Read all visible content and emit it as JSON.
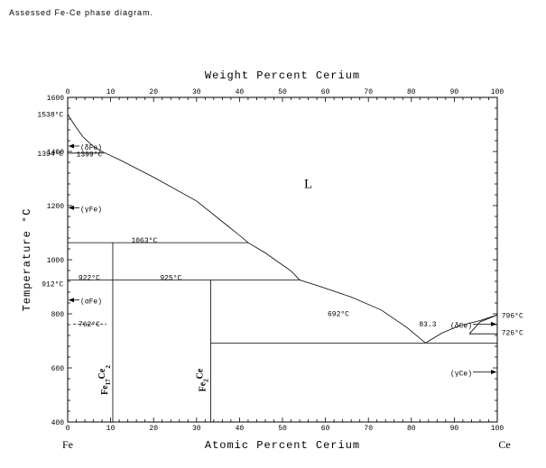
{
  "caption": "Assessed Fe-Ce phase diagram.",
  "chart_data": {
    "type": "phase-diagram",
    "top_axis": {
      "title": "Weight Percent Cerium",
      "ticks": [
        0,
        10,
        20,
        30,
        40,
        50,
        60,
        70,
        80,
        90,
        100
      ]
    },
    "bottom_axis": {
      "title": "Atomic Percent Cerium",
      "range": [
        0,
        100
      ],
      "ticks": [
        0,
        10,
        20,
        30,
        40,
        50,
        60,
        70,
        80,
        90,
        100
      ]
    },
    "y_axis": {
      "title": "Temperature °C",
      "range": [
        400,
        1600
      ],
      "ticks": [
        400,
        600,
        800,
        1000,
        1200,
        1400,
        1600
      ]
    },
    "end_labels": {
      "left": "Fe",
      "right": "Ce"
    },
    "phase_labels": [
      {
        "text": "L",
        "x": 56,
        "y": 1265
      }
    ],
    "compounds": [
      {
        "name": "Fe17Ce2",
        "base": "Fe",
        "sub1": "17",
        "mid": "Ce",
        "sub2": "2",
        "x": 10.5
      },
      {
        "name": "Fe2Ce",
        "base": "Fe",
        "sub1": "2",
        "mid": "Ce",
        "sub2": "",
        "x": 33.3
      }
    ],
    "temperature_labels": [
      {
        "text": "1538°C",
        "x": -1,
        "y": 1538,
        "anchor": "end"
      },
      {
        "text": "1394°C",
        "x": -1,
        "y": 1393,
        "anchor": "end"
      },
      {
        "text": "1399°C",
        "x": 2,
        "y": 1392,
        "anchor": "start"
      },
      {
        "text": "1063°C",
        "x": 14.8,
        "y": 1073,
        "anchor": "start"
      },
      {
        "text": "922°C",
        "x": 2.5,
        "y": 935,
        "anchor": "start"
      },
      {
        "text": "912°C",
        "x": -1,
        "y": 912,
        "anchor": "end"
      },
      {
        "text": "925°C",
        "x": 21.5,
        "y": 935,
        "anchor": "start"
      },
      {
        "text": "762°C",
        "x": 2.5,
        "y": 764,
        "anchor": "start"
      },
      {
        "text": "692°C",
        "x": 60.5,
        "y": 802,
        "anchor": "start"
      },
      {
        "text": "83.3",
        "x": 81.8,
        "y": 763,
        "anchor": "start"
      },
      {
        "text": "796°C",
        "x": 101,
        "y": 795,
        "anchor": "start"
      },
      {
        "text": "726°C",
        "x": 101,
        "y": 732,
        "anchor": "start"
      }
    ],
    "phase_markers": [
      {
        "text": "(δFe)",
        "side": "left",
        "y": 1420
      },
      {
        "text": "(γFe)",
        "side": "left",
        "y": 1192
      },
      {
        "text": "(αFe)",
        "side": "left",
        "y": 851
      },
      {
        "text": "(δCe)",
        "side": "right",
        "y": 762
      },
      {
        "text": "(γCe)",
        "side": "right",
        "y": 585
      }
    ],
    "liquidus": [
      [
        0,
        1538
      ],
      [
        1.5,
        1500
      ],
      [
        3.5,
        1455
      ],
      [
        6,
        1418
      ],
      [
        8.5,
        1396
      ],
      [
        12,
        1370
      ],
      [
        20,
        1305
      ],
      [
        30,
        1217
      ],
      [
        40,
        1090
      ],
      [
        42,
        1063
      ],
      [
        46,
        1025
      ],
      [
        52,
        958
      ],
      [
        54,
        925
      ],
      [
        58,
        905
      ],
      [
        66,
        862
      ],
      [
        73,
        814
      ],
      [
        79,
        749
      ],
      [
        83.3,
        692
      ],
      [
        87,
        728
      ],
      [
        91,
        755
      ],
      [
        96,
        775
      ],
      [
        100,
        796
      ]
    ],
    "solvus": [
      [
        93.5,
        726
      ],
      [
        96,
        770
      ],
      [
        100,
        796
      ]
    ],
    "horizontals": [
      {
        "x1": 0,
        "x2": 8.5,
        "y": 1394
      },
      {
        "x1": 0,
        "x2": 42,
        "y": 1063
      },
      {
        "x1": 0,
        "x2": 54,
        "y": 925
      },
      {
        "x1": 33.3,
        "x2": 100,
        "y": 692
      },
      {
        "x1": 93.5,
        "x2": 100,
        "y": 726
      }
    ],
    "dashed": [
      {
        "x1": 1.3,
        "x2": 9,
        "y": 762
      }
    ],
    "verticals": [
      {
        "x": 10.5,
        "y1": 400,
        "y2": 1063
      },
      {
        "x": 33.3,
        "y1": 400,
        "y2": 925
      }
    ]
  }
}
